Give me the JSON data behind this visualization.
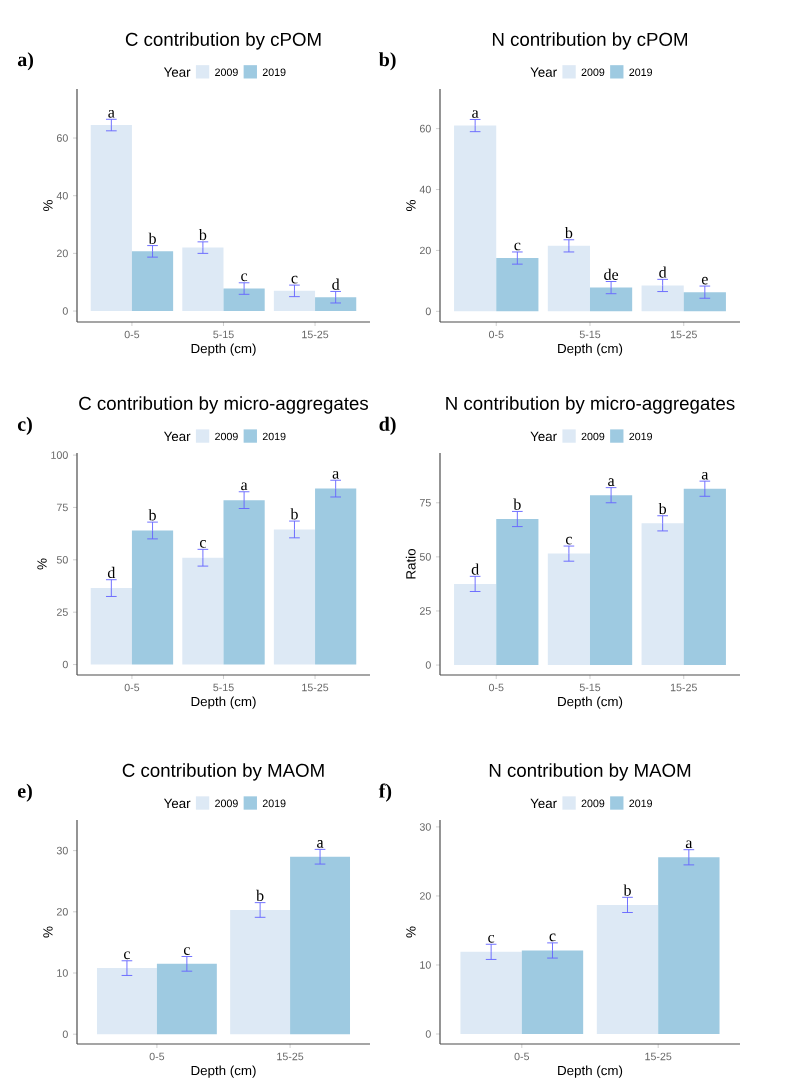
{
  "chart_data": [
    {
      "type": "bar",
      "title": "C contribution by cPOM",
      "xlabel": "Depth (cm)",
      "ylabel": "%",
      "legend_title": "Year",
      "legend": "top",
      "annotations": [
        "a)"
      ],
      "categories": [
        "0-5",
        "5-15",
        "15-25"
      ],
      "ylim": [
        -3.8,
        77
      ],
      "yticks": [
        0,
        20,
        40,
        60
      ],
      "series": [
        {
          "name": "2009",
          "color": "#dde9f5",
          "values": [
            64.5,
            22,
            7
          ],
          "errors": [
            2,
            2,
            2
          ],
          "value_labels": [
            "a",
            "b",
            "c"
          ]
        },
        {
          "name": "2019",
          "color": "#9ecae1",
          "values": [
            20.7,
            7.8,
            4.8
          ],
          "errors": [
            2,
            2,
            2
          ],
          "value_labels": [
            "b",
            "c",
            "d"
          ]
        }
      ]
    },
    {
      "type": "bar",
      "title": "N contribution by cPOM",
      "xlabel": "Depth (cm)",
      "ylabel": "%",
      "legend_title": "Year",
      "legend": "top",
      "annotations": [
        "b)"
      ],
      "categories": [
        "0-5",
        "5-15",
        "15-25"
      ],
      "ylim": [
        -3.5,
        73
      ],
      "yticks": [
        0,
        20,
        40,
        60
      ],
      "series": [
        {
          "name": "2009",
          "color": "#dde9f5",
          "values": [
            61,
            21.5,
            8.5
          ],
          "errors": [
            2,
            2,
            2
          ],
          "value_labels": [
            "a",
            "b",
            "d"
          ]
        },
        {
          "name": "2019",
          "color": "#9ecae1",
          "values": [
            17.5,
            7.8,
            6.3
          ],
          "errors": [
            2,
            2,
            2
          ],
          "value_labels": [
            "c",
            "de",
            "e"
          ]
        }
      ]
    },
    {
      "type": "bar",
      "title": "C contribution by micro-aggregates",
      "xlabel": "Depth (cm)",
      "ylabel": "%",
      "legend_title": "Year",
      "legend": "top",
      "annotations": [
        "c)"
      ],
      "categories": [
        "0-5",
        "5-15",
        "15-25"
      ],
      "ylim": [
        -5,
        101
      ],
      "yticks": [
        0,
        25,
        50,
        75,
        100
      ],
      "series": [
        {
          "name": "2009",
          "color": "#dde9f5",
          "values": [
            36.5,
            51,
            64.5
          ],
          "errors": [
            4,
            4,
            4
          ],
          "value_labels": [
            "d",
            "c",
            "b"
          ]
        },
        {
          "name": "2019",
          "color": "#9ecae1",
          "values": [
            64,
            78.5,
            84
          ],
          "errors": [
            4,
            4,
            4
          ],
          "value_labels": [
            "b",
            "a",
            "a"
          ]
        }
      ]
    },
    {
      "type": "bar",
      "title": "N contribution by micro-aggregates",
      "xlabel": "Depth (cm)",
      "ylabel": "Ratio",
      "legend_title": "Year",
      "legend": "top",
      "annotations": [
        "d)"
      ],
      "categories": [
        "0-5",
        "5-15",
        "15-25"
      ],
      "ylim": [
        -4.6,
        98
      ],
      "yticks": [
        0,
        25,
        50,
        75
      ],
      "series": [
        {
          "name": "2009",
          "color": "#dde9f5",
          "values": [
            37.5,
            51.5,
            65.5
          ],
          "errors": [
            3.5,
            3.5,
            3.5
          ],
          "value_labels": [
            "d",
            "c",
            "b"
          ]
        },
        {
          "name": "2019",
          "color": "#9ecae1",
          "values": [
            67.5,
            78.5,
            81.5
          ],
          "errors": [
            3.5,
            3.5,
            3.5
          ],
          "value_labels": [
            "b",
            "a",
            "a"
          ]
        }
      ]
    },
    {
      "type": "bar",
      "title": "C contribution by MAOM",
      "xlabel": "Depth (cm)",
      "ylabel": "%",
      "legend_title": "Year",
      "legend": "top",
      "annotations": [
        "e)"
      ],
      "categories": [
        "0-5",
        "15-25"
      ],
      "ylim": [
        -1.6,
        35
      ],
      "yticks": [
        0,
        10,
        20,
        30
      ],
      "series": [
        {
          "name": "2009",
          "color": "#dde9f5",
          "values": [
            10.8,
            20.3
          ],
          "errors": [
            1.2,
            1.2
          ],
          "value_labels": [
            "c",
            "b"
          ]
        },
        {
          "name": "2019",
          "color": "#9ecae1",
          "values": [
            11.5,
            29
          ],
          "errors": [
            1.2,
            1.2
          ],
          "value_labels": [
            "c",
            "a"
          ]
        }
      ]
    },
    {
      "type": "bar",
      "title": "N contribution by MAOM",
      "xlabel": "Depth (cm)",
      "ylabel": "%",
      "legend_title": "Year",
      "legend": "top",
      "annotations": [
        "f)"
      ],
      "categories": [
        "0-5",
        "15-25"
      ],
      "ylim": [
        -1.45,
        31
      ],
      "yticks": [
        0,
        10,
        20,
        30
      ],
      "series": [
        {
          "name": "2009",
          "color": "#dde9f5",
          "values": [
            11.9,
            18.7
          ],
          "errors": [
            1.1,
            1.1
          ],
          "value_labels": [
            "c",
            "b"
          ]
        },
        {
          "name": "2019",
          "color": "#9ecae1",
          "values": [
            12.1,
            25.6
          ],
          "errors": [
            1.1,
            1.1
          ],
          "value_labels": [
            "c",
            "a"
          ]
        }
      ]
    }
  ]
}
